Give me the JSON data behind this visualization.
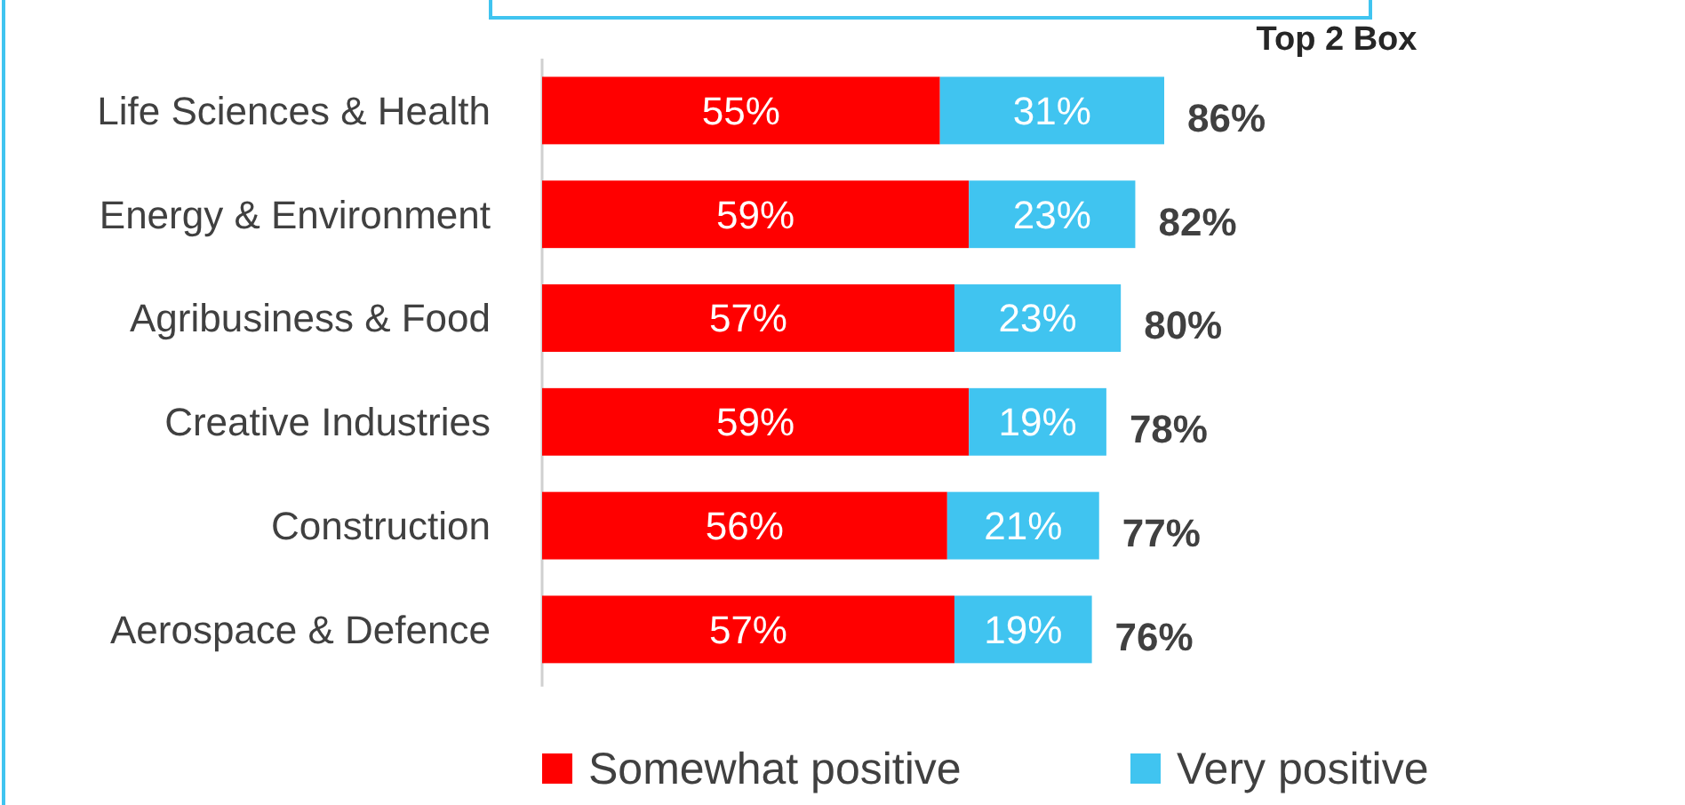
{
  "chart_data": {
    "type": "bar",
    "orientation": "horizontal",
    "stacked": true,
    "categories": [
      "Life Sciences & Health",
      "Energy & Environment",
      "Agribusiness & Food",
      "Creative Industries",
      "Construction",
      "Aerospace & Defence"
    ],
    "series": [
      {
        "name": "Somewhat positive",
        "color": "#ff0000",
        "values": [
          55,
          59,
          57,
          59,
          56,
          57
        ],
        "value_labels": [
          "55%",
          "59%",
          "57%",
          "59%",
          "56%",
          "57%"
        ]
      },
      {
        "name": "Very positive",
        "color": "#40c4f0",
        "values": [
          31,
          23,
          23,
          19,
          21,
          19
        ],
        "value_labels": [
          "31%",
          "23%",
          "23%",
          "19%",
          "21%",
          "19%"
        ]
      }
    ],
    "totals": [
      "86%",
      "82%",
      "80%",
      "78%",
      "77%",
      "76%"
    ],
    "tick_labels": "y",
    "annotations": [
      "Top 2 Box"
    ],
    "legend": "bottom"
  }
}
